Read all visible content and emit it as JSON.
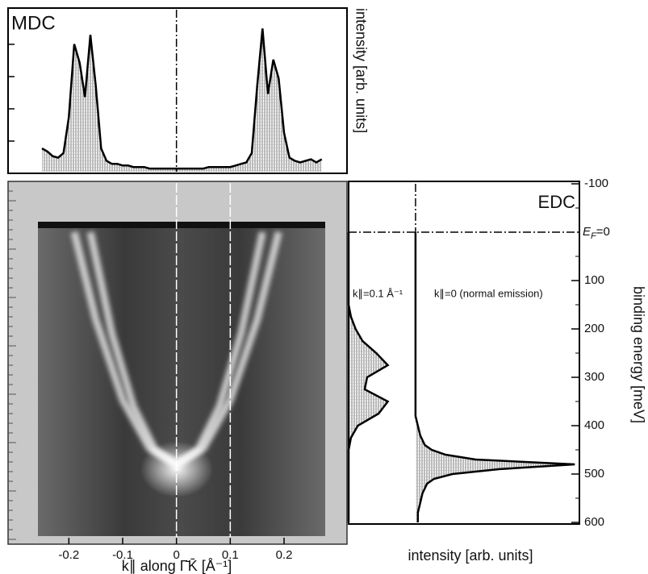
{
  "chart_data": [
    {
      "type": "line",
      "title": "MDC",
      "ylabel": "intensity [arb. units]",
      "x": [
        -0.25,
        -0.24,
        -0.23,
        -0.22,
        -0.21,
        -0.2,
        -0.19,
        -0.18,
        -0.17,
        -0.16,
        -0.15,
        -0.14,
        -0.13,
        -0.12,
        -0.11,
        -0.1,
        -0.09,
        -0.08,
        -0.07,
        -0.06,
        -0.05,
        -0.04,
        -0.03,
        -0.02,
        -0.01,
        0,
        0.01,
        0.02,
        0.03,
        0.04,
        0.05,
        0.06,
        0.07,
        0.08,
        0.09,
        0.1,
        0.11,
        0.12,
        0.13,
        0.14,
        0.15,
        0.16,
        0.17,
        0.18,
        0.19,
        0.2,
        0.21,
        0.22,
        0.23,
        0.24,
        0.25,
        0.26,
        0.27
      ],
      "values": [
        0.15,
        0.13,
        0.1,
        0.09,
        0.12,
        0.35,
        0.82,
        0.7,
        0.48,
        0.88,
        0.55,
        0.15,
        0.07,
        0.05,
        0.05,
        0.04,
        0.04,
        0.03,
        0.03,
        0.03,
        0.02,
        0.02,
        0.02,
        0.02,
        0.02,
        0.02,
        0.02,
        0.02,
        0.02,
        0.02,
        0.02,
        0.03,
        0.03,
        0.03,
        0.03,
        0.03,
        0.04,
        0.05,
        0.06,
        0.12,
        0.55,
        0.92,
        0.5,
        0.72,
        0.6,
        0.25,
        0.09,
        0.07,
        0.06,
        0.07,
        0.08,
        0.06,
        0.08
      ],
      "xlim": [
        -0.313,
        0.317
      ],
      "ylim": [
        0,
        1
      ],
      "fill": "hatch",
      "color": "#000000"
    },
    {
      "type": "image",
      "xlabel": "k∥ along Γ̄K̄ [Å⁻¹]",
      "xlim": [
        -0.313,
        0.317
      ],
      "xticks": [
        -0.2,
        -0.1,
        0,
        0.1,
        0.2
      ],
      "ylim": [
        -100,
        600
      ],
      "series": [
        {
          "color": "#ffffff",
          "x": [
            -0.19,
            -0.15,
            -0.1,
            -0.05,
            0,
            0.05,
            0.1,
            0.15,
            0.19
          ],
          "values": [
            0,
            181,
            347,
            447,
            480,
            447,
            347,
            181,
            0
          ]
        },
        {
          "color": "#ffffff",
          "x": [
            -0.16,
            -0.12,
            -0.08,
            -0.04,
            0,
            0.04,
            0.08,
            0.12,
            0.16
          ],
          "values": [
            0,
            210,
            360,
            450,
            480,
            450,
            360,
            210,
            0
          ]
        }
      ],
      "cuts": [
        0,
        0.1
      ]
    },
    {
      "type": "edc",
      "title": "EDC",
      "xlabel": "intensity [arb. units]",
      "ylabel": "binding energy [meV]",
      "xlim": [
        0,
        1
      ],
      "ylim": [
        -100,
        600
      ],
      "yticks": [
        -100,
        100,
        200,
        300,
        400,
        500,
        600
      ],
      "fermi_label": {
        "symbol": "E",
        "subscript": "F",
        "text": "=0"
      },
      "series": [
        {
          "name": "k∥=0.1 Å⁻¹",
          "color": "#000000",
          "y": [
            0,
            25,
            50,
            75,
            100,
            125,
            150,
            175,
            200,
            225,
            250,
            275,
            300,
            325,
            350,
            375,
            400,
            425,
            450,
            475,
            500,
            525,
            550,
            575,
            600
          ],
          "values": [
            0,
            0,
            0,
            0,
            0,
            0,
            0,
            0.01,
            0.03,
            0.06,
            0.12,
            0.17,
            0.08,
            0.07,
            0.17,
            0.13,
            0.04,
            0.01,
            0,
            0,
            0,
            0,
            0,
            0,
            0
          ]
        },
        {
          "name": "k∥=0 (normal emission)",
          "color": "#000000",
          "y": [
            0,
            100,
            200,
            300,
            380,
            400,
            420,
            440,
            450,
            460,
            470,
            480,
            490,
            500,
            510,
            520,
            540,
            560,
            580,
            600
          ],
          "values": [
            0.29,
            0.29,
            0.29,
            0.29,
            0.29,
            0.3,
            0.31,
            0.33,
            0.36,
            0.42,
            0.55,
            0.98,
            0.65,
            0.45,
            0.37,
            0.34,
            0.32,
            0.31,
            0.3,
            0.3
          ]
        }
      ]
    }
  ]
}
